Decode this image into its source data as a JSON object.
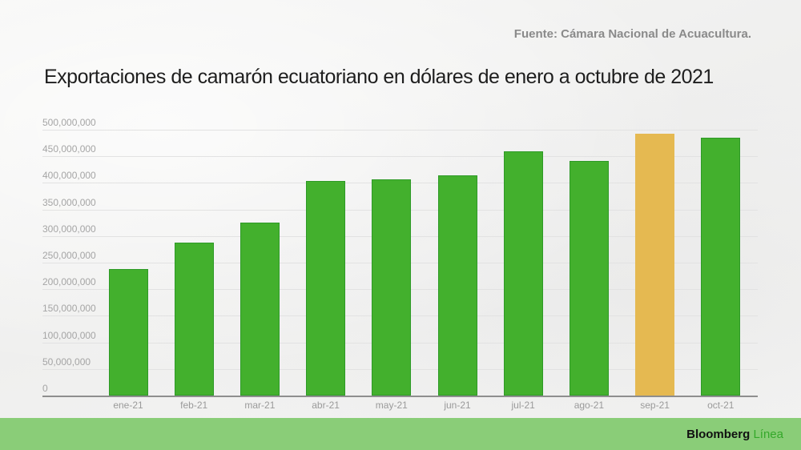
{
  "header": {
    "source": "Fuente: Cámara Nacional de Acuacultura.",
    "title": "Exportaciones de camarón  ecuatoriano en dólares de enero a octubre de 2021"
  },
  "footer": {
    "brand_main": "Bloomberg",
    "brand_accent": "Línea",
    "background": "#8acd78"
  },
  "colors": {
    "bar": "#43b02d",
    "highlight": "#e5b951"
  },
  "chart_data": {
    "type": "bar",
    "title": "Exportaciones de camarón  ecuatoriano en dólares de enero a octubre de 2021",
    "xlabel": "",
    "ylabel": "",
    "categories": [
      "ene-21",
      "feb-21",
      "mar-21",
      "abr-21",
      "may-21",
      "jun-21",
      "jul-21",
      "ago-21",
      "sep-21",
      "oct-21"
    ],
    "values": [
      238000000,
      288000000,
      325000000,
      404000000,
      407000000,
      414000000,
      459000000,
      441000000,
      492000000,
      485000000
    ],
    "highlight_index": 8,
    "ylim": [
      0,
      500000000
    ],
    "yticks": [
      "0",
      "50,000,000",
      "100,000,000",
      "150,000,000",
      "200,000,000",
      "250,000,000",
      "300,000,000",
      "350,000,000",
      "400,000,000",
      "450,000,000",
      "500,000,000"
    ],
    "grid": true,
    "legend": null,
    "source": "Fuente: Cámara Nacional de Acuacultura."
  }
}
